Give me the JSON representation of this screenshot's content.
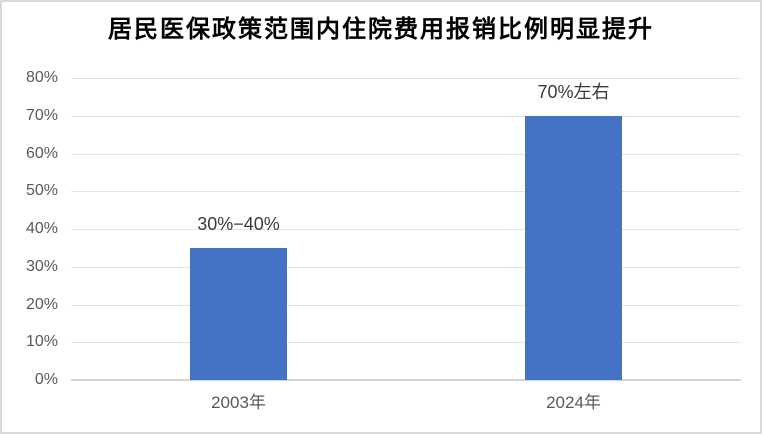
{
  "window": {
    "background": "#ffffff",
    "border_color": "#d9d9d9"
  },
  "chart_data": {
    "type": "bar",
    "title": "居民医保政策范围内住院费用报销比例明显提升",
    "categories": [
      "2003年",
      "2024年"
    ],
    "values": [
      35,
      70
    ],
    "bar_labels": [
      "30%−40%",
      "70%左右"
    ],
    "yticks": [
      "0%",
      "10%",
      "20%",
      "30%",
      "40%",
      "50%",
      "60%",
      "70%",
      "80%"
    ],
    "ytick_values": [
      0,
      10,
      20,
      30,
      40,
      50,
      60,
      70,
      80
    ],
    "ylim": [
      0,
      80
    ],
    "xlabel": "",
    "ylabel": "",
    "grid": true,
    "legend": false,
    "colors": {
      "bar": "#4472C4",
      "gridline": "#e4e4e4",
      "axis_line": "#d4d4d4",
      "tick_label": "#595959",
      "category_label": "#595959",
      "data_label": "#3b3b3b",
      "title": "#000000"
    }
  }
}
